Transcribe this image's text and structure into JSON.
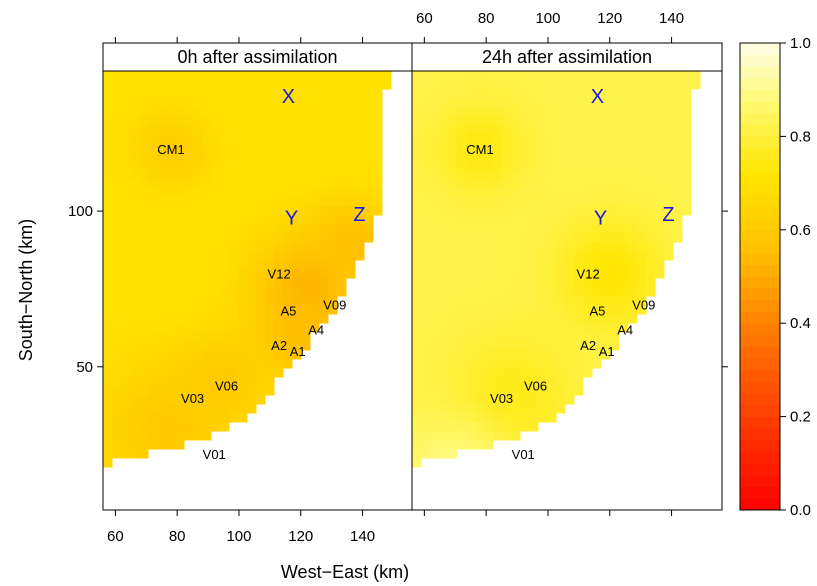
{
  "chart_data": {
    "type": "heatmap",
    "xlabel": "West−East (km)",
    "ylabel": "South−North (km)",
    "xlim": [
      56,
      156
    ],
    "ylim": [
      4,
      145
    ],
    "x_ticks": [
      "60",
      "80",
      "100",
      "120",
      "140"
    ],
    "x_tick_values": [
      60,
      80,
      100,
      120,
      140
    ],
    "y_ticks": [
      "50",
      "100"
    ],
    "y_tick_values": [
      50,
      100
    ],
    "colorbar": {
      "range": [
        0.0,
        1.0
      ],
      "ticks": [
        "0.0",
        "0.2",
        "0.4",
        "0.6",
        "0.8",
        "1.0"
      ],
      "tick_values": [
        0.0,
        0.2,
        0.4,
        0.6,
        0.8,
        1.0
      ],
      "colors": {
        "low": "#ff0000",
        "mid": "#ffd700",
        "high": "#ffffe8"
      }
    },
    "panels": [
      {
        "title": "0h after assimilation",
        "background_value": 0.7,
        "features": [
          {
            "x": 78,
            "y": 120,
            "sigma": 9,
            "value": 0.62
          },
          {
            "x": 123,
            "y": 75,
            "sigma": 13,
            "value": 0.52
          },
          {
            "x": 137,
            "y": 90,
            "sigma": 9,
            "value": 0.56
          },
          {
            "x": 120,
            "y": 60,
            "sigma": 9,
            "value": 0.55
          },
          {
            "x": 95,
            "y": 46,
            "sigma": 10,
            "value": 0.6
          },
          {
            "x": 77,
            "y": 30,
            "sigma": 16,
            "value": 0.6
          }
        ]
      },
      {
        "title": "24h after assimilation",
        "background_value": 0.82,
        "features": [
          {
            "x": 78,
            "y": 120,
            "sigma": 10,
            "value": 0.74
          },
          {
            "x": 120,
            "y": 80,
            "sigma": 12,
            "value": 0.72
          },
          {
            "x": 88,
            "y": 40,
            "sigma": 14,
            "value": 0.75
          },
          {
            "x": 70,
            "y": 15,
            "sigma": 12,
            "value": 0.9
          }
        ]
      }
    ],
    "sites": [
      {
        "name": "CM1",
        "x": 78,
        "y": 120
      },
      {
        "name": "V12",
        "x": 113,
        "y": 80
      },
      {
        "name": "V09",
        "x": 131,
        "y": 70
      },
      {
        "name": "A5",
        "x": 116,
        "y": 68
      },
      {
        "name": "A4",
        "x": 125,
        "y": 62
      },
      {
        "name": "A2",
        "x": 113,
        "y": 57
      },
      {
        "name": "A1",
        "x": 119,
        "y": 55
      },
      {
        "name": "V06",
        "x": 96,
        "y": 44
      },
      {
        "name": "V03",
        "x": 85,
        "y": 40
      },
      {
        "name": "V01",
        "x": 92,
        "y": 22
      }
    ],
    "points": [
      {
        "name": "X",
        "x": 116,
        "y": 137
      },
      {
        "name": "Y",
        "x": 117,
        "y": 98
      },
      {
        "name": "Z",
        "x": 139,
        "y": 99
      }
    ],
    "grid": false,
    "legend": "right"
  }
}
